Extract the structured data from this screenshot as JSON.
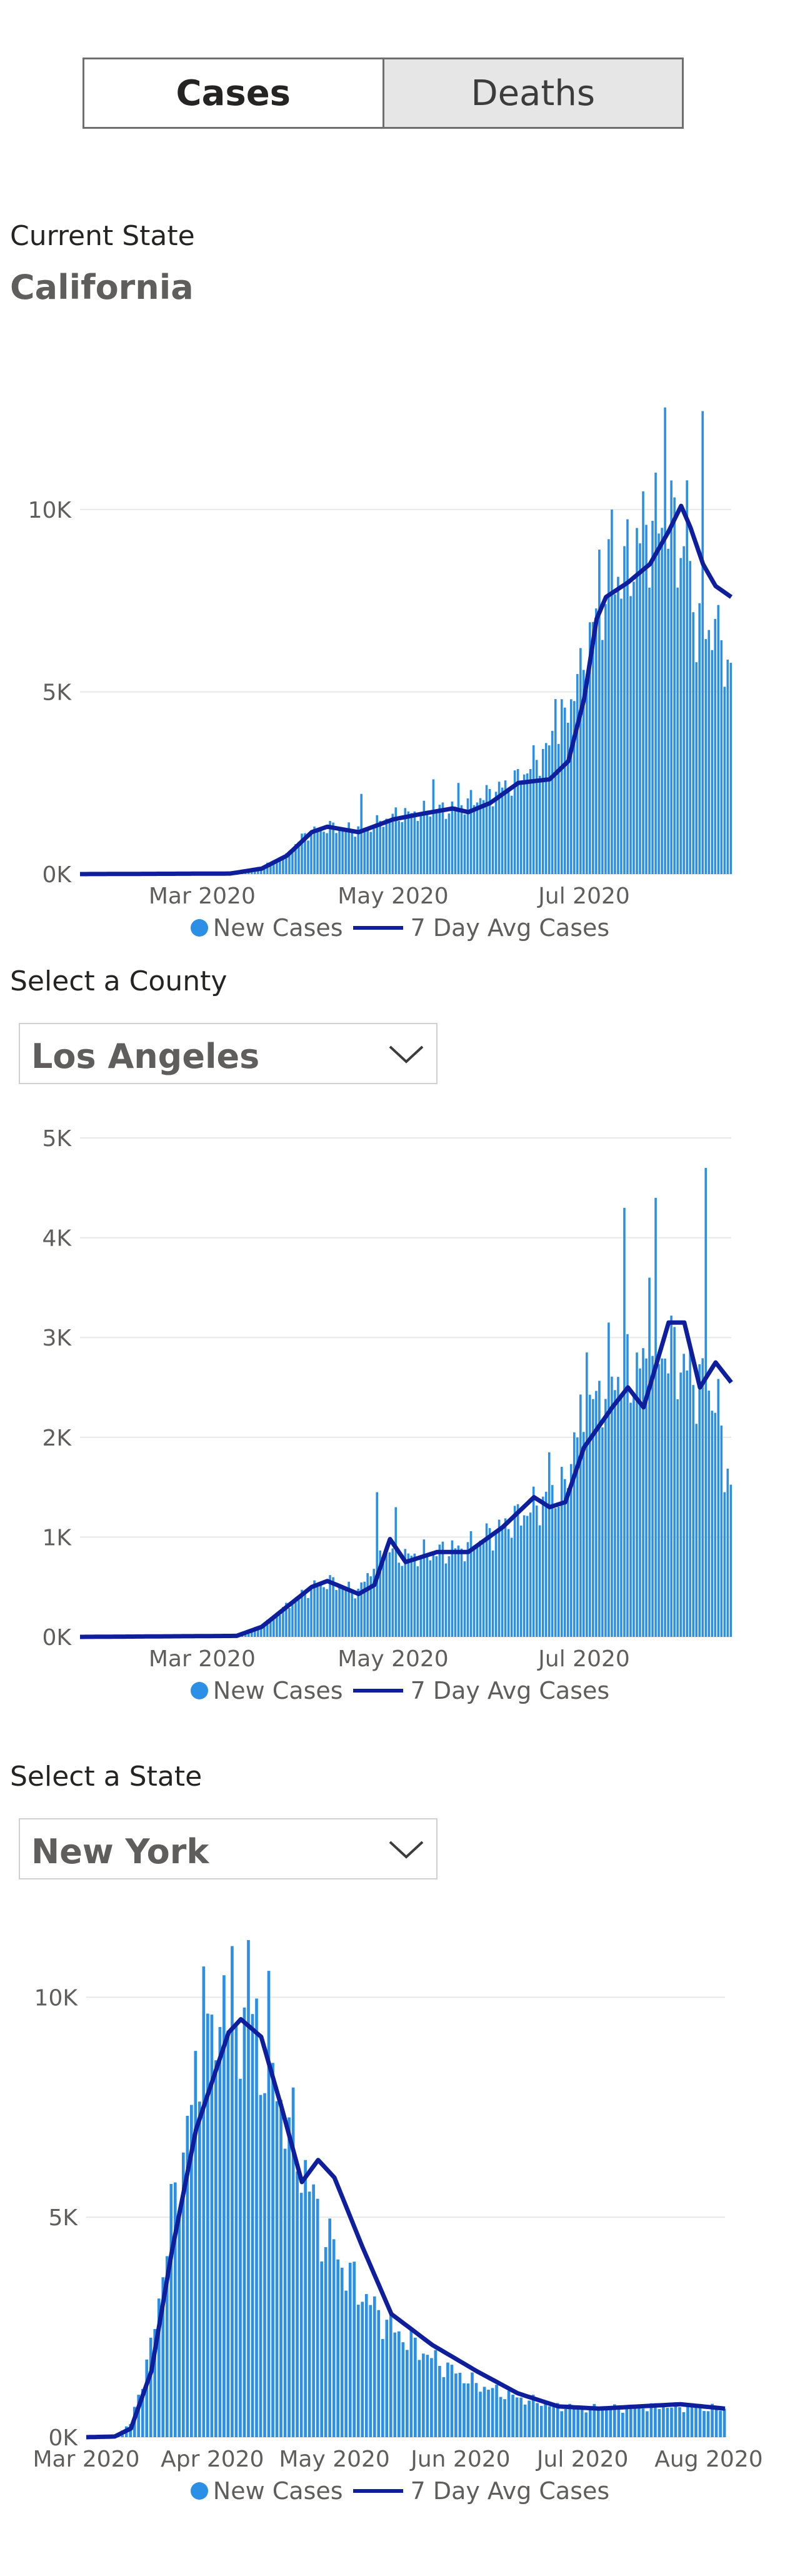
{
  "tabs": {
    "cases_label": "Cases",
    "deaths_label": "Deaths",
    "active": "Cases"
  },
  "sections": {
    "current_state_label": "Current State",
    "current_state_value": "California",
    "county_label": "Select a County",
    "county_value": "Los Angeles",
    "state_label": "Select a State",
    "state_value": "New York"
  },
  "colors": {
    "bars": "#2b8fe6",
    "avg_line": "#0f1f9c",
    "grid": "#e8e8e8",
    "axis_text": "#605e5c"
  },
  "icons": {
    "dropdown": "chevron-down-icon",
    "legend_bar": "circle-marker",
    "legend_line": "line-marker"
  },
  "legend": {
    "bar_label": "New Cases",
    "line_label": "7 Day Avg Cases"
  },
  "chart_data": [
    {
      "id": "california",
      "type": "bar",
      "combo_line": true,
      "series_names": [
        "New Cases",
        "7 Day Avg Cases"
      ],
      "x_range": [
        "2020-01-22",
        "2020-08-17"
      ],
      "ylim": [
        0,
        13000
      ],
      "y_ticks": [
        0,
        5000,
        10000
      ],
      "y_tick_labels": [
        "0K",
        "5K",
        "10K"
      ],
      "x_ticks": [
        "2020-03-01",
        "2020-05-01",
        "2020-07-01"
      ],
      "x_tick_labels": [
        "Mar 2020",
        "May 2020",
        "Jul 2020"
      ],
      "grid": true,
      "legend_position": "bottom-center",
      "bar_profile": [
        [
          "2020-01-22",
          0
        ],
        [
          "2020-03-10",
          20
        ],
        [
          "2020-03-20",
          200
        ],
        [
          "2020-03-28",
          500
        ],
        [
          "2020-04-03",
          1100
        ],
        [
          "2020-04-12",
          1300
        ],
        [
          "2020-04-22",
          1200
        ],
        [
          "2020-05-01",
          1600
        ],
        [
          "2020-05-10",
          1700
        ],
        [
          "2020-05-20",
          1800
        ],
        [
          "2020-06-01",
          2200
        ],
        [
          "2020-06-10",
          2600
        ],
        [
          "2020-06-20",
          3500
        ],
        [
          "2020-06-26",
          4500
        ],
        [
          "2020-07-01",
          6000
        ],
        [
          "2020-07-08",
          7800
        ],
        [
          "2020-07-15",
          8500
        ],
        [
          "2020-07-22",
          9500
        ],
        [
          "2020-07-28",
          9800
        ],
        [
          "2020-08-01",
          9000
        ],
        [
          "2020-08-06",
          7000
        ],
        [
          "2020-08-12",
          6500
        ],
        [
          "2020-08-17",
          5700
        ]
      ],
      "bar_spikes": [
        [
          "2020-04-21",
          2200
        ],
        [
          "2020-05-14",
          2600
        ],
        [
          "2020-05-22",
          2500
        ],
        [
          "2020-06-22",
          4800
        ],
        [
          "2020-06-30",
          6200
        ],
        [
          "2020-07-06",
          8900
        ],
        [
          "2020-07-10",
          10000
        ],
        [
          "2020-07-20",
          10500
        ],
        [
          "2020-07-27",
          12800
        ],
        [
          "2020-08-03",
          10800
        ],
        [
          "2020-08-08",
          12700
        ],
        [
          "2020-08-12",
          7000
        ]
      ],
      "avg_profile": [
        [
          "2020-01-22",
          0
        ],
        [
          "2020-03-10",
          15
        ],
        [
          "2020-03-20",
          150
        ],
        [
          "2020-03-28",
          500
        ],
        [
          "2020-04-05",
          1150
        ],
        [
          "2020-04-10",
          1300
        ],
        [
          "2020-04-20",
          1150
        ],
        [
          "2020-05-01",
          1500
        ],
        [
          "2020-05-10",
          1650
        ],
        [
          "2020-05-20",
          1800
        ],
        [
          "2020-05-25",
          1700
        ],
        [
          "2020-06-01",
          1950
        ],
        [
          "2020-06-10",
          2500
        ],
        [
          "2020-06-20",
          2600
        ],
        [
          "2020-06-26",
          3100
        ],
        [
          "2020-07-01",
          4800
        ],
        [
          "2020-07-05",
          7000
        ],
        [
          "2020-07-08",
          7600
        ],
        [
          "2020-07-15",
          8000
        ],
        [
          "2020-07-22",
          8500
        ],
        [
          "2020-07-28",
          9400
        ],
        [
          "2020-08-01",
          10100
        ],
        [
          "2020-08-04",
          9500
        ],
        [
          "2020-08-08",
          8500
        ],
        [
          "2020-08-12",
          7900
        ],
        [
          "2020-08-17",
          7600
        ]
      ]
    },
    {
      "id": "los-angeles",
      "type": "bar",
      "combo_line": true,
      "series_names": [
        "New Cases",
        "7 Day Avg Cases"
      ],
      "x_range": [
        "2020-01-22",
        "2020-08-17"
      ],
      "ylim": [
        0,
        5000
      ],
      "y_ticks": [
        0,
        1000,
        2000,
        3000,
        4000,
        5000
      ],
      "y_tick_labels": [
        "0K",
        "1K",
        "2K",
        "3K",
        "4K",
        "5K"
      ],
      "x_ticks": [
        "2020-03-01",
        "2020-05-01",
        "2020-07-01"
      ],
      "x_tick_labels": [
        "Mar 2020",
        "May 2020",
        "Jul 2020"
      ],
      "grid": true,
      "legend_position": "bottom-center",
      "bar_profile": [
        [
          "2020-01-22",
          0
        ],
        [
          "2020-03-12",
          10
        ],
        [
          "2020-03-20",
          100
        ],
        [
          "2020-03-28",
          300
        ],
        [
          "2020-04-05",
          500
        ],
        [
          "2020-04-12",
          550
        ],
        [
          "2020-04-20",
          450
        ],
        [
          "2020-04-28",
          900
        ],
        [
          "2020-05-05",
          800
        ],
        [
          "2020-05-15",
          850
        ],
        [
          "2020-05-25",
          900
        ],
        [
          "2020-06-05",
          1100
        ],
        [
          "2020-06-15",
          1300
        ],
        [
          "2020-06-25",
          1500
        ],
        [
          "2020-07-01",
          2200
        ],
        [
          "2020-07-10",
          2600
        ],
        [
          "2020-07-20",
          2700
        ],
        [
          "2020-07-28",
          2900
        ],
        [
          "2020-08-05",
          2600
        ],
        [
          "2020-08-12",
          2400
        ],
        [
          "2020-08-17",
          1500
        ]
      ],
      "bar_spikes": [
        [
          "2020-04-26",
          1450
        ],
        [
          "2020-05-02",
          1300
        ],
        [
          "2020-06-20",
          1850
        ],
        [
          "2020-06-28",
          2050
        ],
        [
          "2020-07-02",
          2850
        ],
        [
          "2020-07-09",
          3150
        ],
        [
          "2020-07-14",
          4300
        ],
        [
          "2020-07-22",
          3600
        ],
        [
          "2020-07-24",
          4400
        ],
        [
          "2020-08-09",
          4700
        ],
        [
          "2020-08-15",
          1450
        ]
      ],
      "avg_profile": [
        [
          "2020-01-22",
          0
        ],
        [
          "2020-03-12",
          10
        ],
        [
          "2020-03-20",
          100
        ],
        [
          "2020-03-28",
          300
        ],
        [
          "2020-04-05",
          500
        ],
        [
          "2020-04-10",
          560
        ],
        [
          "2020-04-20",
          430
        ],
        [
          "2020-04-25",
          520
        ],
        [
          "2020-04-30",
          980
        ],
        [
          "2020-05-05",
          750
        ],
        [
          "2020-05-15",
          850
        ],
        [
          "2020-05-25",
          850
        ],
        [
          "2020-06-05",
          1100
        ],
        [
          "2020-06-15",
          1400
        ],
        [
          "2020-06-20",
          1300
        ],
        [
          "2020-06-25",
          1350
        ],
        [
          "2020-07-01",
          1900
        ],
        [
          "2020-07-10",
          2300
        ],
        [
          "2020-07-15",
          2500
        ],
        [
          "2020-07-20",
          2300
        ],
        [
          "2020-07-28",
          3150
        ],
        [
          "2020-08-02",
          3150
        ],
        [
          "2020-08-07",
          2500
        ],
        [
          "2020-08-12",
          2750
        ],
        [
          "2020-08-17",
          2550
        ]
      ]
    },
    {
      "id": "new-york",
      "type": "bar",
      "combo_line": true,
      "series_names": [
        "New Cases",
        "7 Day Avg Cases"
      ],
      "x_range": [
        "2020-03-01",
        "2020-08-05"
      ],
      "ylim": [
        0,
        11000
      ],
      "y_ticks": [
        0,
        5000,
        10000
      ],
      "y_tick_labels": [
        "0K",
        "5K",
        "10K"
      ],
      "x_ticks": [
        "2020-03-01",
        "2020-04-01",
        "2020-05-01",
        "2020-06-01",
        "2020-07-01",
        "2020-08-01"
      ],
      "x_tick_labels": [
        "Mar 2020",
        "Apr 2020",
        "May 2020",
        "Jun 2020",
        "Jul 2020",
        "Aug 2020"
      ],
      "grid": true,
      "legend_position": "bottom-center",
      "bar_profile": [
        [
          "2020-03-01",
          0
        ],
        [
          "2020-03-08",
          20
        ],
        [
          "2020-03-12",
          300
        ],
        [
          "2020-03-17",
          2000
        ],
        [
          "2020-03-22",
          5000
        ],
        [
          "2020-03-28",
          8000
        ],
        [
          "2020-04-04",
          9500
        ],
        [
          "2020-04-10",
          9500
        ],
        [
          "2020-04-15",
          8500
        ],
        [
          "2020-04-22",
          6500
        ],
        [
          "2020-04-29",
          4500
        ],
        [
          "2020-05-06",
          3500
        ],
        [
          "2020-05-15",
          2500
        ],
        [
          "2020-05-25",
          1800
        ],
        [
          "2020-06-05",
          1200
        ],
        [
          "2020-06-15",
          900
        ],
        [
          "2020-06-25",
          700
        ],
        [
          "2020-07-05",
          650
        ],
        [
          "2020-07-20",
          700
        ],
        [
          "2020-08-05",
          650
        ]
      ],
      "bar_spikes": [
        [
          "2020-03-30",
          10700
        ],
        [
          "2020-04-04",
          10500
        ],
        [
          "2020-04-10",
          11300
        ],
        [
          "2020-04-15",
          10600
        ],
        [
          "2020-04-24",
          6300
        ],
        [
          "2020-05-01",
          4500
        ],
        [
          "2020-05-11",
          3200
        ]
      ],
      "avg_profile": [
        [
          "2020-03-01",
          0
        ],
        [
          "2020-03-08",
          15
        ],
        [
          "2020-03-12",
          200
        ],
        [
          "2020-03-17",
          1500
        ],
        [
          "2020-03-22",
          4200
        ],
        [
          "2020-03-28",
          7000
        ],
        [
          "2020-04-01",
          8100
        ],
        [
          "2020-04-05",
          9200
        ],
        [
          "2020-04-08",
          9500
        ],
        [
          "2020-04-13",
          9100
        ],
        [
          "2020-04-18",
          7500
        ],
        [
          "2020-04-23",
          5800
        ],
        [
          "2020-04-27",
          6300
        ],
        [
          "2020-05-01",
          5900
        ],
        [
          "2020-05-08",
          4300
        ],
        [
          "2020-05-15",
          2800
        ],
        [
          "2020-05-25",
          2100
        ],
        [
          "2020-06-05",
          1500
        ],
        [
          "2020-06-15",
          1000
        ],
        [
          "2020-06-25",
          700
        ],
        [
          "2020-07-05",
          650
        ],
        [
          "2020-07-25",
          750
        ],
        [
          "2020-08-05",
          650
        ]
      ]
    }
  ]
}
